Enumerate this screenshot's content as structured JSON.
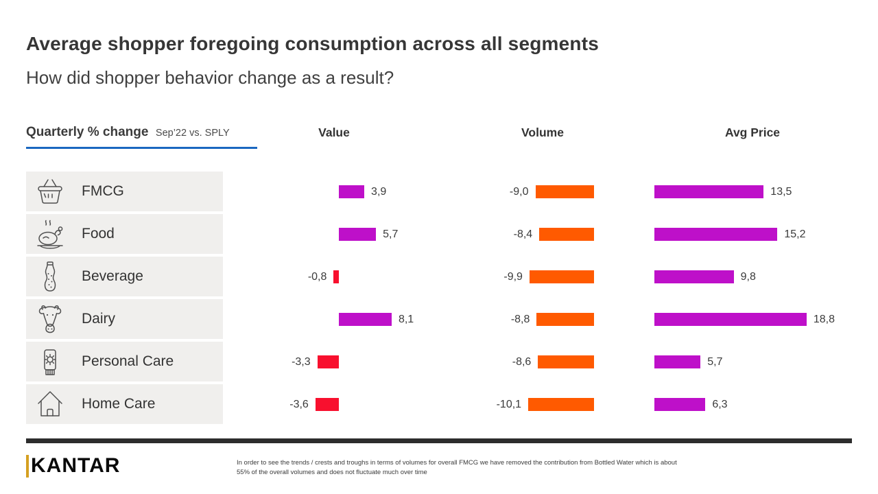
{
  "header": {
    "title": "Average shopper foregoing consumption across all segments",
    "subtitle": "How did shopper behavior change as a result?"
  },
  "chart_header": {
    "metric_label": "Quarterly % change",
    "period_label": "Sep’22 vs. SPLY"
  },
  "colors": {
    "positive_magenta": "#be10c9",
    "negative_red": "#f8102e",
    "volume_orange": "#ff5a00",
    "underline_blue": "#1a67c0",
    "divider_dark": "#2d2d2d",
    "row_background": "#f0efed",
    "logo_gold": "#d5a021"
  },
  "chart_data": {
    "type": "bar",
    "orientation": "horizontal",
    "title": "Quarterly % change Sep’22 vs. SPLY",
    "categories": [
      "FMCG",
      "Food",
      "Beverage",
      "Dairy",
      "Personal Care",
      "Home Care"
    ],
    "category_icons": [
      "basket-icon",
      "roast-chicken-icon",
      "soda-bottle-icon",
      "cow-icon",
      "lotion-tube-icon",
      "house-icon"
    ],
    "series": [
      {
        "name": "Value",
        "values": [
          3.9,
          5.7,
          -0.8,
          8.1,
          -3.3,
          -3.6
        ],
        "labels": [
          "3,9",
          "5,7",
          "-0,8",
          "8,1",
          "-3,3",
          "-3,6"
        ],
        "color_positive": "#be10c9",
        "color_negative": "#f8102e"
      },
      {
        "name": "Volume",
        "values": [
          -9.0,
          -8.4,
          -9.9,
          -8.8,
          -8.6,
          -10.1
        ],
        "labels": [
          "-9,0",
          "-8,4",
          "-9,9",
          "-8,8",
          "-8,6",
          "-10,1"
        ],
        "color_positive": "#ff5a00",
        "color_negative": "#ff5a00"
      },
      {
        "name": "Avg Price",
        "values": [
          13.5,
          15.2,
          9.8,
          18.8,
          5.7,
          6.3
        ],
        "labels": [
          "13,5",
          "15,2",
          "9,8",
          "18,8",
          "5,7",
          "6,3"
        ],
        "color_positive": "#be10c9",
        "color_negative": "#f8102e"
      }
    ],
    "layout_hints": {
      "grid": false,
      "legend": false,
      "value_labels_shown": true,
      "decimal_separator": ","
    }
  },
  "footer": {
    "logo_text": "KANTAR",
    "footnote_line1": "In order to see the trends / crests and troughs in terms of volumes for overall FMCG we have removed the contribution from Bottled Water which is about",
    "footnote_line2": "55% of the overall volumes and does not fluctuate much over time"
  }
}
